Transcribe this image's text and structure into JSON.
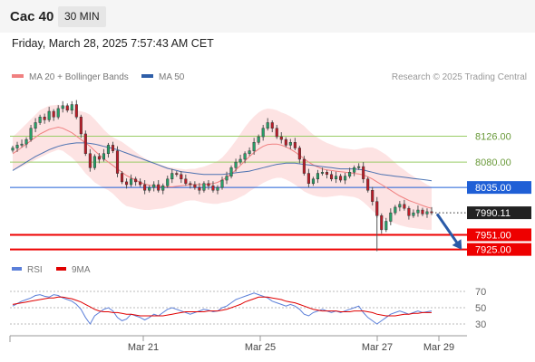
{
  "header": {
    "title": "Cac 40",
    "timeframe": "30 MIN"
  },
  "datetime": "Friday, March 28, 2025 7:57:43 AM CET",
  "legend": {
    "items": [
      {
        "label": "MA 20 + Bollinger Bands",
        "color": "#f08080"
      },
      {
        "label": "MA 50",
        "color": "#2e5ea8"
      }
    ],
    "research": "Research © 2025 Trading Central"
  },
  "rsi_legend": {
    "items": [
      {
        "label": "RSI",
        "color": "#5b7fd9"
      },
      {
        "label": "9MA",
        "color": "#e00000"
      }
    ]
  },
  "chart_data": [
    {
      "type": "candlestick",
      "ylim": [
        7910,
        8215
      ],
      "x_tick_labels": [
        "Mar 21",
        "Mar 25",
        "Mar 27",
        "Mar 29"
      ],
      "current_price": "7990.11",
      "levels": [
        {
          "label": "8126.00",
          "value": 8126,
          "kind": "resistance",
          "color": "#99cc66"
        },
        {
          "label": "8080.00",
          "value": 8080,
          "kind": "resistance",
          "color": "#99cc66"
        },
        {
          "label": "8035.00",
          "value": 8035,
          "kind": "pivot",
          "color": "#1f5fd6"
        },
        {
          "label": "7951.00",
          "value": 7951,
          "kind": "support",
          "color": "#ee0000"
        },
        {
          "label": "7925.00",
          "value": 7925,
          "kind": "support",
          "color": "#ee0000"
        }
      ],
      "close": [
        8105,
        8110,
        8112,
        8120,
        8140,
        8150,
        8160,
        8155,
        8170,
        8160,
        8175,
        8180,
        8172,
        8182,
        8160,
        8130,
        8095,
        8070,
        8090,
        8085,
        8095,
        8110,
        8100,
        8060,
        8045,
        8040,
        8050,
        8045,
        8040,
        8030,
        8035,
        8040,
        8030,
        8038,
        8050,
        8060,
        8058,
        8050,
        8042,
        8040,
        8035,
        8030,
        8042,
        8038,
        8030,
        8035,
        8048,
        8055,
        8070,
        8080,
        8085,
        8095,
        8100,
        8115,
        8125,
        8140,
        8150,
        8140,
        8125,
        8120,
        8110,
        8115,
        8105,
        8085,
        8060,
        8042,
        8050,
        8060,
        8062,
        8058,
        8050,
        8055,
        8048,
        8055,
        8062,
        8070,
        8072,
        8050,
        8030,
        8010,
        7985,
        7960,
        7975,
        7990,
        8000,
        8005,
        7998,
        7985,
        7990,
        7995,
        7988,
        7992,
        7990
      ],
      "ma20": [
        8095,
        8100,
        8106,
        8112,
        8118,
        8124,
        8130,
        8134,
        8138,
        8140,
        8142,
        8140,
        8136,
        8132,
        8126,
        8120,
        8114,
        8108,
        8100,
        8093,
        8086,
        8080,
        8074,
        8068,
        8062,
        8056,
        8052,
        8048,
        8044,
        8041,
        8039,
        8038,
        8037,
        8036,
        8036,
        8036,
        8037,
        8038,
        8039,
        8040,
        8040,
        8040,
        8040,
        8041,
        8042,
        8044,
        8048,
        8053,
        8059,
        8066,
        8074,
        8082,
        8090,
        8097,
        8103,
        8108,
        8111,
        8112,
        8112,
        8110,
        8107,
        8103,
        8098,
        8092,
        8086,
        8080,
        8075,
        8071,
        8068,
        8066,
        8065,
        8064,
        8063,
        8062,
        8061,
        8060,
        8059,
        8057,
        8054,
        8050,
        8045,
        8040,
        8035,
        8030,
        8025,
        8020,
        8016,
        8012,
        8009,
        8006,
        8003,
        8000,
        7998
      ],
      "ma50": [
        8065,
        8070,
        8075,
        8080,
        8085,
        8090,
        8094,
        8098,
        8102,
        8105,
        8108,
        8110,
        8112,
        8113,
        8114,
        8114,
        8114,
        8113,
        8112,
        8110,
        8108,
        8106,
        8104,
        8102,
        8099,
        8096,
        8093,
        8090,
        8087,
        8084,
        8081,
        8078,
        8075,
        8072,
        8069,
        8067,
        8065,
        8063,
        8062,
        8061,
        8060,
        8059,
        8058,
        8058,
        8058,
        8058,
        8058,
        8059,
        8060,
        8061,
        8062,
        8063,
        8064,
        8066,
        8068,
        8070,
        8072,
        8074,
        8076,
        8077,
        8078,
        8078,
        8078,
        8077,
        8076,
        8075,
        8074,
        8073,
        8072,
        8071,
        8070,
        8069,
        8068,
        8068,
        8068,
        8068,
        8067,
        8066,
        8064,
        8062,
        8060,
        8058,
        8057,
        8056,
        8055,
        8054,
        8053,
        8052,
        8051,
        8050,
        8049,
        8048,
        8047
      ],
      "bb_width": [
        30,
        32,
        34,
        36,
        38,
        40,
        42,
        42,
        42,
        41,
        40,
        40,
        42,
        44,
        46,
        50,
        54,
        56,
        56,
        54,
        52,
        50,
        50,
        52,
        54,
        54,
        52,
        50,
        48,
        46,
        44,
        42,
        40,
        38,
        36,
        34,
        32,
        30,
        28,
        28,
        28,
        30,
        32,
        34,
        36,
        38,
        40,
        44,
        48,
        52,
        56,
        60,
        62,
        64,
        65,
        65,
        64,
        62,
        60,
        58,
        58,
        58,
        58,
        58,
        58,
        56,
        54,
        52,
        50,
        48,
        46,
        44,
        42,
        42,
        42,
        42,
        44,
        48,
        52,
        56,
        58,
        58,
        58,
        56,
        54,
        52,
        50,
        48,
        46,
        44,
        42,
        40,
        38
      ],
      "forecast": {
        "direction": "down",
        "target": "7925.00"
      }
    },
    {
      "type": "line",
      "name": "RSI",
      "ylim": [
        20,
        80
      ],
      "y_ticks": [
        70,
        50,
        30
      ],
      "series": [
        {
          "name": "RSI",
          "color": "#5b7fd9",
          "values": [
            52,
            55,
            58,
            60,
            62,
            65,
            66,
            64,
            63,
            66,
            65,
            62,
            60,
            58,
            54,
            48,
            38,
            30,
            40,
            44,
            48,
            50,
            46,
            38,
            34,
            36,
            42,
            40,
            38,
            35,
            38,
            42,
            40,
            44,
            48,
            50,
            48,
            46,
            44,
            42,
            44,
            46,
            48,
            47,
            45,
            46,
            50,
            52,
            56,
            60,
            62,
            64,
            66,
            68,
            66,
            64,
            62,
            58,
            56,
            54,
            52,
            54,
            52,
            48,
            42,
            40,
            44,
            46,
            48,
            46,
            44,
            46,
            44,
            46,
            48,
            50,
            52,
            44,
            38,
            34,
            30,
            34,
            38,
            42,
            44,
            46,
            44,
            42,
            44,
            46,
            44,
            45,
            46
          ]
        },
        {
          "name": "9MA",
          "color": "#e00000",
          "values": [
            54,
            55,
            56,
            57,
            58,
            59,
            60,
            61,
            62,
            62,
            63,
            63,
            62,
            61,
            59,
            57,
            54,
            51,
            48,
            46,
            45,
            45,
            44,
            44,
            43,
            42,
            42,
            41,
            40,
            40,
            40,
            40,
            40,
            40,
            41,
            42,
            43,
            44,
            45,
            45,
            45,
            45,
            45,
            46,
            46,
            46,
            47,
            48,
            50,
            52,
            54,
            57,
            59,
            61,
            63,
            63,
            63,
            62,
            61,
            60,
            58,
            57,
            56,
            54,
            52,
            50,
            48,
            47,
            46,
            46,
            46,
            46,
            45,
            45,
            45,
            46,
            46,
            46,
            45,
            44,
            42,
            41,
            40,
            40,
            40,
            41,
            42,
            42,
            43,
            43,
            44,
            44,
            44
          ]
        }
      ]
    }
  ]
}
